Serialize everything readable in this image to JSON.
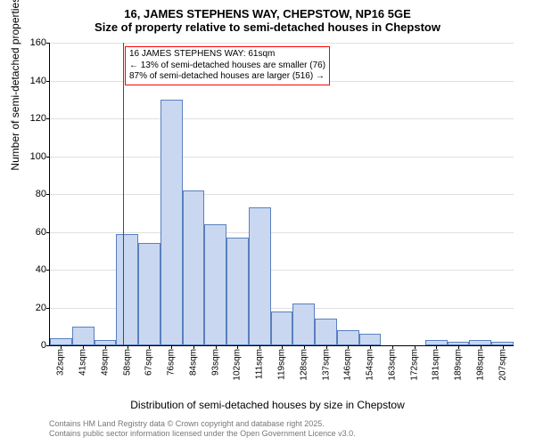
{
  "title_main": "16, JAMES STEPHENS WAY, CHEPSTOW, NP16 5GE",
  "title_sub": "Size of property relative to semi-detached houses in Chepstow",
  "ylabel": "Number of semi-detached properties",
  "xlabel": "Distribution of semi-detached houses by size in Chepstow",
  "footer_line1": "Contains HM Land Registry data © Crown copyright and database right 2025.",
  "footer_line2": "Contains public sector information licensed under the Open Government Licence v3.0.",
  "annotation": {
    "line1": "16 JAMES STEPHENS WAY: 61sqm",
    "line2": "← 13% of semi-detached houses are smaller (76)",
    "line3": "87% of semi-detached houses are larger (516) →"
  },
  "chart": {
    "type": "histogram",
    "ylim": [
      0,
      160
    ],
    "ytick_step": 20,
    "bar_fill": "#c9d8f0",
    "bar_stroke": "#5a7fbf",
    "grid_color": "#e0e0e0",
    "marker_x_value": 61,
    "marker_color": "#ff0000",
    "x_categories": [
      "32sqm",
      "41sqm",
      "49sqm",
      "58sqm",
      "67sqm",
      "76sqm",
      "84sqm",
      "93sqm",
      "102sqm",
      "111sqm",
      "119sqm",
      "128sqm",
      "137sqm",
      "146sqm",
      "154sqm",
      "163sqm",
      "172sqm",
      "181sqm",
      "189sqm",
      "198sqm",
      "207sqm"
    ],
    "values": [
      4,
      10,
      3,
      59,
      54,
      130,
      82,
      64,
      57,
      73,
      18,
      22,
      14,
      8,
      6,
      0,
      0,
      3,
      2,
      3,
      2
    ],
    "title_fontsize": 13,
    "label_fontsize": 12,
    "tick_fontsize": 10
  }
}
